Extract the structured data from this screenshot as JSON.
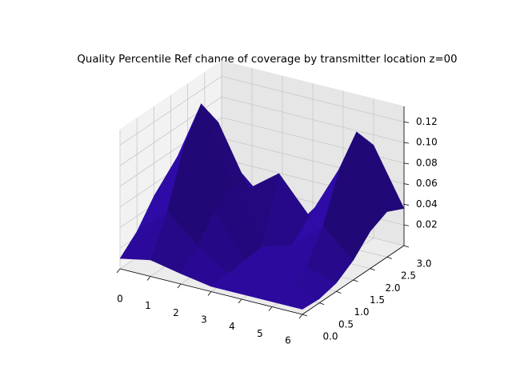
{
  "chart_data": {
    "type": "surface",
    "title": "Quality Percentile Ref change of coverage by transmitter location z=00",
    "x": [
      0,
      1,
      2,
      3,
      4,
      5,
      6
    ],
    "y": [
      0,
      0.5,
      1,
      1.5,
      2,
      2.5,
      3
    ],
    "z": [
      [
        0.01,
        0.016,
        0.01,
        0.005,
        0.005,
        0.005,
        0.005
      ],
      [
        0.025,
        0.052,
        0.025,
        0.006,
        0.005,
        0.006,
        0.004
      ],
      [
        0.048,
        0.105,
        0.048,
        0.008,
        0.008,
        0.016,
        0.008
      ],
      [
        0.061,
        0.134,
        0.061,
        0.01,
        0.019,
        0.044,
        0.019
      ],
      [
        0.048,
        0.105,
        0.048,
        0.07,
        0.036,
        0.09,
        0.036
      ],
      [
        0.025,
        0.052,
        0.025,
        0.008,
        0.044,
        0.114,
        0.044
      ],
      [
        0.01,
        0.018,
        0.01,
        0.006,
        0.036,
        0.09,
        0.036
      ]
    ],
    "color": "#2c0a9e",
    "xlim": [
      0,
      6
    ],
    "ylim": [
      0,
      3
    ],
    "zlim": [
      0,
      0.135
    ],
    "xticks": [
      0,
      1,
      2,
      3,
      4,
      5,
      6
    ],
    "yticks": [
      {
        "value": 0,
        "label": "0.0"
      },
      0.5,
      {
        "value": 1,
        "label": "1.0"
      },
      1.5,
      {
        "value": 2,
        "label": "2.0"
      },
      2.5,
      {
        "value": 3,
        "label": "3.0"
      }
    ],
    "zticks": [
      0.02,
      0.04,
      0.06,
      0.08,
      {
        "value": 0.1,
        "label": "0.10"
      },
      0.12
    ],
    "grid": true
  }
}
